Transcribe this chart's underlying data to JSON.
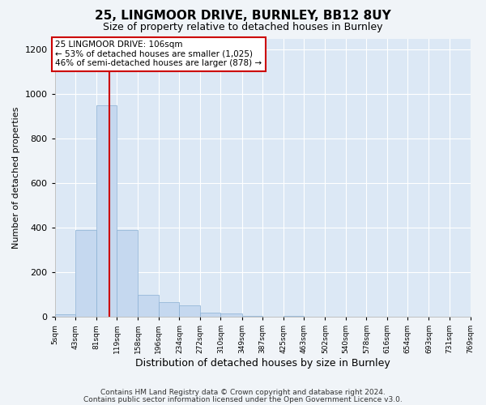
{
  "title1": "25, LINGMOOR DRIVE, BURNLEY, BB12 8UY",
  "title2": "Size of property relative to detached houses in Burnley",
  "xlabel": "Distribution of detached houses by size in Burnley",
  "ylabel": "Number of detached properties",
  "bar_color": "#c5d8ef",
  "bar_edge_color": "#8ab0d4",
  "figure_bg_color": "#f0f4f8",
  "plot_bg_color": "#dce8f5",
  "grid_color": "#ffffff",
  "annotation_line_color": "#cc0000",
  "annotation_box_color": "#cc0000",
  "footer1": "Contains HM Land Registry data © Crown copyright and database right 2024.",
  "footer2": "Contains public sector information licensed under the Open Government Licence v3.0.",
  "annotation_line1": "25 LINGMOOR DRIVE: 106sqm",
  "annotation_line2": "← 53% of detached houses are smaller (1,025)",
  "annotation_line3": "46% of semi-detached houses are larger (878) →",
  "property_size": 106,
  "bin_edges": [
    5,
    43,
    81,
    119,
    158,
    196,
    234,
    272,
    310,
    349,
    387,
    425,
    463,
    502,
    540,
    578,
    616,
    654,
    693,
    731,
    769
  ],
  "counts": [
    10,
    390,
    950,
    390,
    100,
    65,
    50,
    20,
    15,
    5,
    0,
    5,
    0,
    0,
    0,
    0,
    0,
    0,
    0,
    0
  ],
  "ylim": [
    0,
    1250
  ],
  "yticks": [
    0,
    200,
    400,
    600,
    800,
    1000,
    1200
  ]
}
